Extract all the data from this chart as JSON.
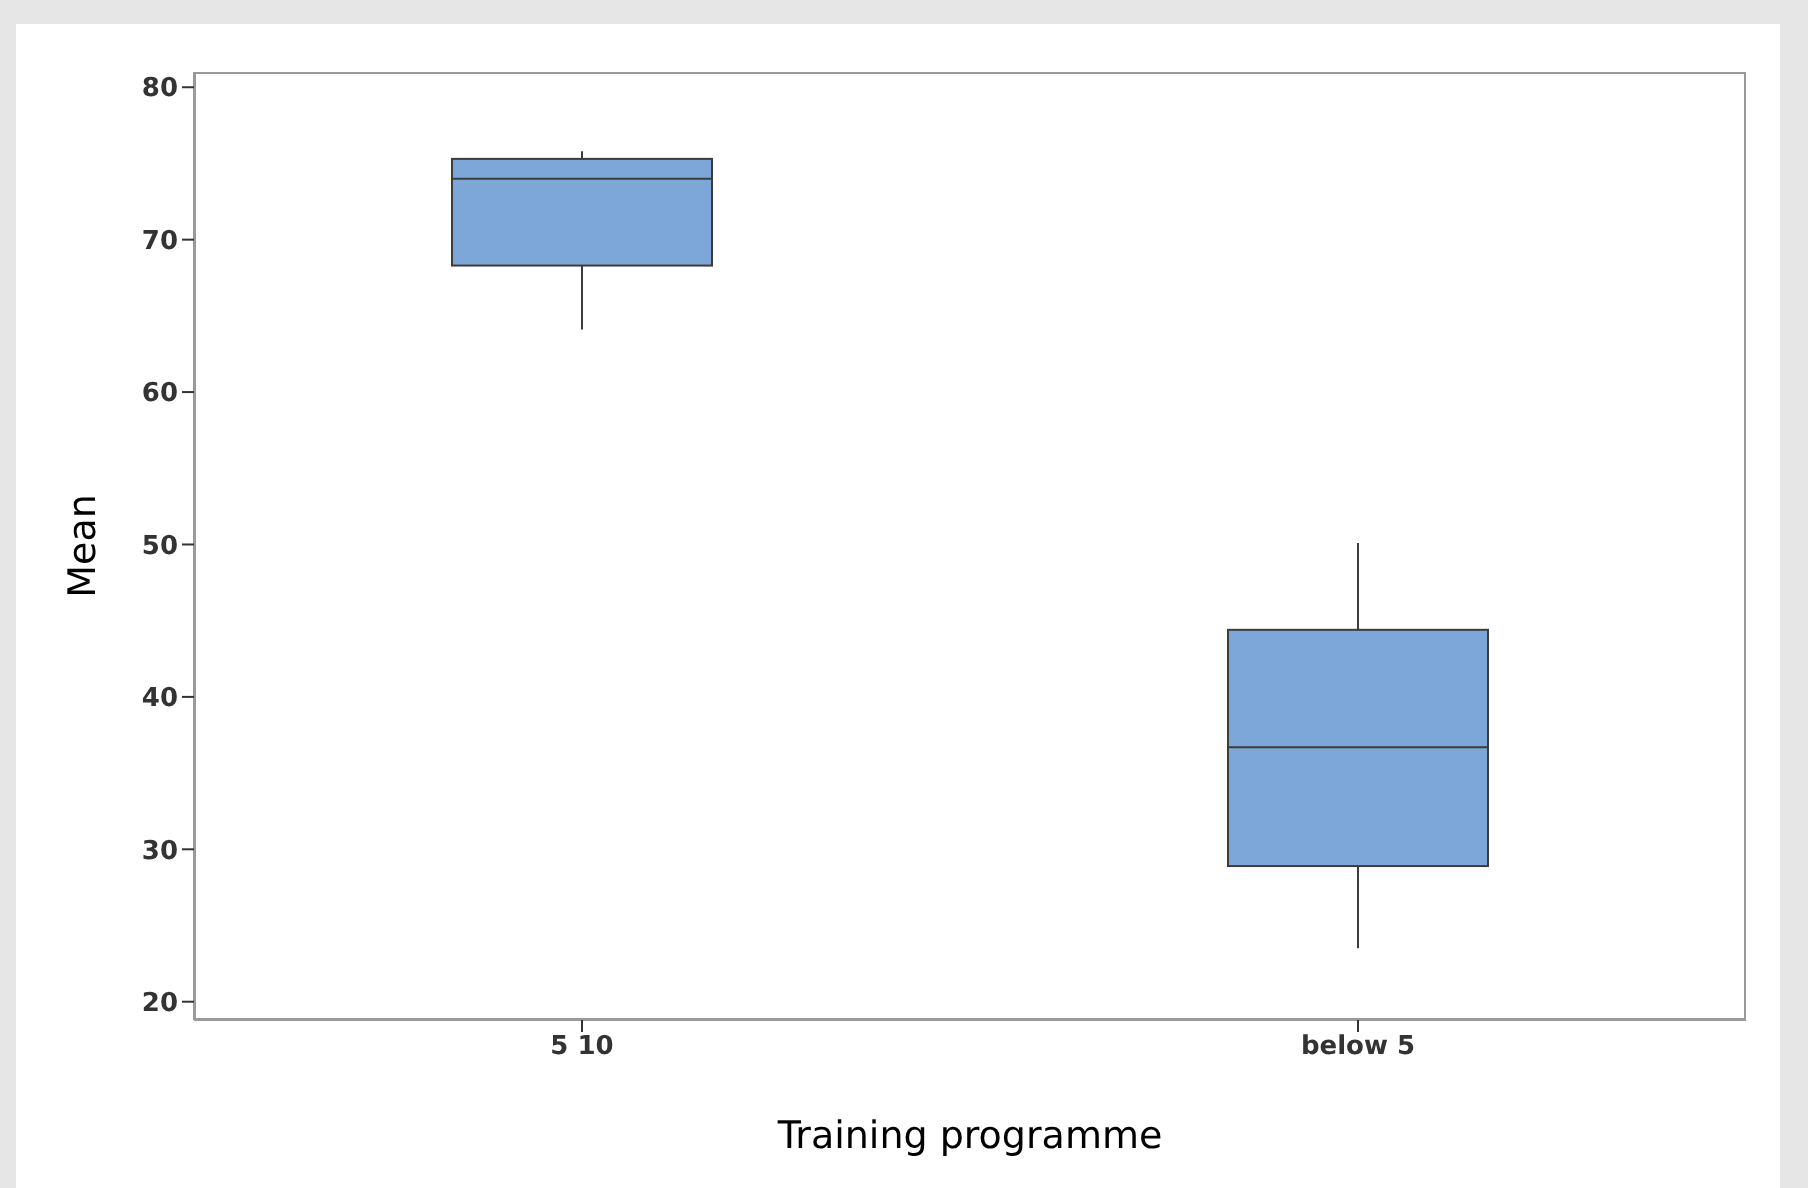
{
  "chart_data": {
    "type": "box",
    "xlabel": "Training programme",
    "ylabel": "Mean",
    "categories": [
      "5 10",
      "below 5"
    ],
    "boxes": [
      {
        "low": 64.1,
        "q1": 68.3,
        "median": 74.0,
        "q3": 75.3,
        "high": 75.8
      },
      {
        "low": 23.5,
        "q1": 28.9,
        "median": 36.7,
        "q3": 44.4,
        "high": 50.1
      }
    ],
    "color": "#7da7d9",
    "ylim": [
      18.8,
      81
    ],
    "yticks": [
      20,
      30,
      40,
      50,
      60,
      70,
      80
    ]
  }
}
